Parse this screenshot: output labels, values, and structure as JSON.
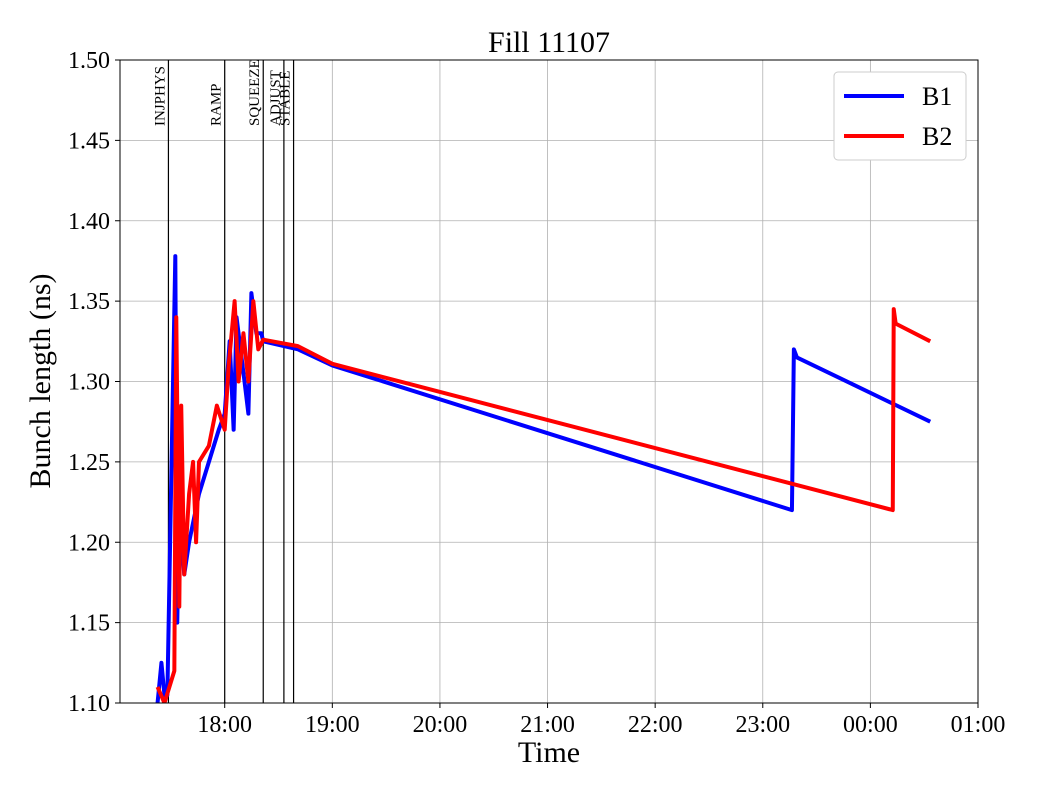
{
  "chart_data": {
    "type": "line",
    "title": "Fill 11107",
    "xlabel": "Time",
    "ylabel": "Bunch length (ns)",
    "xlim": [
      17.027,
      25
    ],
    "ylim": [
      1.1,
      1.5
    ],
    "xticks": [
      {
        "value": 18,
        "label": "18:00"
      },
      {
        "value": 19,
        "label": "19:00"
      },
      {
        "value": 20,
        "label": "20:00"
      },
      {
        "value": 21,
        "label": "21:00"
      },
      {
        "value": 22,
        "label": "22:00"
      },
      {
        "value": 23,
        "label": "23:00"
      },
      {
        "value": 24,
        "label": "00:00"
      },
      {
        "value": 25,
        "label": "01:00"
      }
    ],
    "yticks": [
      {
        "value": 1.1,
        "label": "1.10"
      },
      {
        "value": 1.15,
        "label": "1.15"
      },
      {
        "value": 1.2,
        "label": "1.20"
      },
      {
        "value": 1.25,
        "label": "1.25"
      },
      {
        "value": 1.3,
        "label": "1.30"
      },
      {
        "value": 1.35,
        "label": "1.35"
      },
      {
        "value": 1.4,
        "label": "1.40"
      },
      {
        "value": 1.45,
        "label": "1.45"
      },
      {
        "value": 1.5,
        "label": "1.50"
      }
    ],
    "grid": true,
    "legend": "upper right",
    "phases": [
      {
        "name": "INJPHYS",
        "x": 17.477
      },
      {
        "name": "RAMP",
        "x": 18.0
      },
      {
        "name": "SQUEEZE",
        "x": 18.358
      },
      {
        "name": "ADJUST",
        "x": 18.55
      },
      {
        "name": "STABLE",
        "x": 18.64
      }
    ],
    "series": [
      {
        "name": "B1",
        "color": "#0000ff",
        "x": [
          17.376,
          17.412,
          17.44,
          17.467,
          17.541,
          17.559,
          17.578,
          17.624,
          17.669,
          17.761,
          17.853,
          17.945,
          18.0,
          18.046,
          18.083,
          18.11,
          18.147,
          18.184,
          18.22,
          18.248,
          18.294,
          18.34,
          18.358,
          18.68,
          19.0,
          23.271,
          23.289,
          23.317,
          24.556
        ],
        "values": [
          1.1,
          1.125,
          1.105,
          1.105,
          1.378,
          1.15,
          1.22,
          1.18,
          1.2,
          1.23,
          1.25,
          1.27,
          1.28,
          1.325,
          1.27,
          1.34,
          1.32,
          1.3,
          1.28,
          1.355,
          1.33,
          1.33,
          1.325,
          1.32,
          1.31,
          1.22,
          1.32,
          1.315,
          1.275
        ]
      },
      {
        "name": "B2",
        "color": "#ff0000",
        "x": [
          17.376,
          17.44,
          17.532,
          17.55,
          17.578,
          17.596,
          17.624,
          17.669,
          17.706,
          17.734,
          17.761,
          17.853,
          17.927,
          18.0,
          18.037,
          18.092,
          18.129,
          18.174,
          18.22,
          18.266,
          18.312,
          18.358,
          18.68,
          19.0,
          24.208,
          24.217,
          24.235,
          24.556
        ],
        "values": [
          1.11,
          1.1,
          1.12,
          1.34,
          1.16,
          1.285,
          1.18,
          1.23,
          1.25,
          1.2,
          1.25,
          1.26,
          1.285,
          1.27,
          1.31,
          1.35,
          1.3,
          1.33,
          1.3,
          1.35,
          1.32,
          1.326,
          1.322,
          1.311,
          1.22,
          1.345,
          1.336,
          1.325
        ]
      }
    ]
  }
}
